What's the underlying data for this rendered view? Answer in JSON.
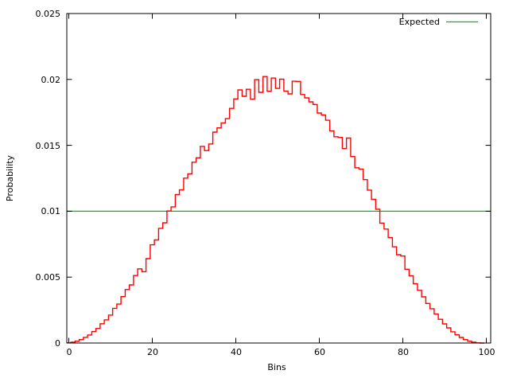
{
  "chart_data": {
    "type": "line",
    "subtype": "step-histogram (gnuplot histeps) with constant expected line",
    "title": "",
    "xlabel": "Bins",
    "ylabel": "Probability",
    "xlim": [
      0,
      101
    ],
    "ylim": [
      0,
      0.025
    ],
    "xticks": [
      0,
      20,
      40,
      60,
      80,
      100
    ],
    "yticks": [
      0,
      0.005,
      0.01,
      0.015,
      0.02,
      0.025
    ],
    "xtick_labels": [
      "0",
      "20",
      "40",
      "60",
      "80",
      "100"
    ],
    "ytick_labels": [
      "0",
      "0.005",
      "0.01",
      "0.015",
      "0.02",
      "0.025"
    ],
    "grid": false,
    "legend_position": "top-right-inside",
    "series": [
      {
        "name": "observed-probability-histogram",
        "in_legend": false,
        "color": "#ff0000",
        "style": "histeps",
        "x_bins": "0..99",
        "values": [
          1e-05,
          6e-05,
          0.00014,
          0.00026,
          0.00043,
          0.00061,
          0.00087,
          0.0011,
          0.00146,
          0.00176,
          0.00212,
          0.00263,
          0.00295,
          0.00352,
          0.00406,
          0.00441,
          0.00512,
          0.00563,
          0.00541,
          0.0064,
          0.00745,
          0.00782,
          0.0087,
          0.00912,
          0.01002,
          0.01033,
          0.01126,
          0.01162,
          0.01251,
          0.01283,
          0.01372,
          0.01405,
          0.01492,
          0.0146,
          0.0151,
          0.016,
          0.01632,
          0.0167,
          0.01702,
          0.0178,
          0.01852,
          0.0192,
          0.01872,
          0.01925,
          0.0185,
          0.01998,
          0.01902,
          0.02022,
          0.0191,
          0.0201,
          0.01932,
          0.02002,
          0.01912,
          0.0189,
          0.01986,
          0.01985,
          0.01885,
          0.0186,
          0.0183,
          0.0181,
          0.01745,
          0.0173,
          0.0169,
          0.0161,
          0.01565,
          0.0156,
          0.01475,
          0.01555,
          0.01415,
          0.0133,
          0.0132,
          0.0124,
          0.0116,
          0.0109,
          0.01015,
          0.0091,
          0.00865,
          0.008,
          0.0073,
          0.0067,
          0.0066,
          0.0056,
          0.0051,
          0.0045,
          0.004,
          0.0035,
          0.003,
          0.0026,
          0.0022,
          0.0018,
          0.00145,
          0.00115,
          0.00085,
          0.00062,
          0.00042,
          0.00026,
          0.00014,
          6e-05,
          1e-05,
          0.0
        ]
      },
      {
        "name": "Expected",
        "in_legend": true,
        "color": "#00c000",
        "style": "hline",
        "value": 0.01
      }
    ],
    "legend": {
      "entries": [
        {
          "label": "Expected",
          "color": "#00c000"
        }
      ]
    }
  },
  "colors": {
    "background": "#ffffff",
    "axis": "#000000",
    "observed_series": "#ff0000",
    "expected_series": "#00c000"
  }
}
